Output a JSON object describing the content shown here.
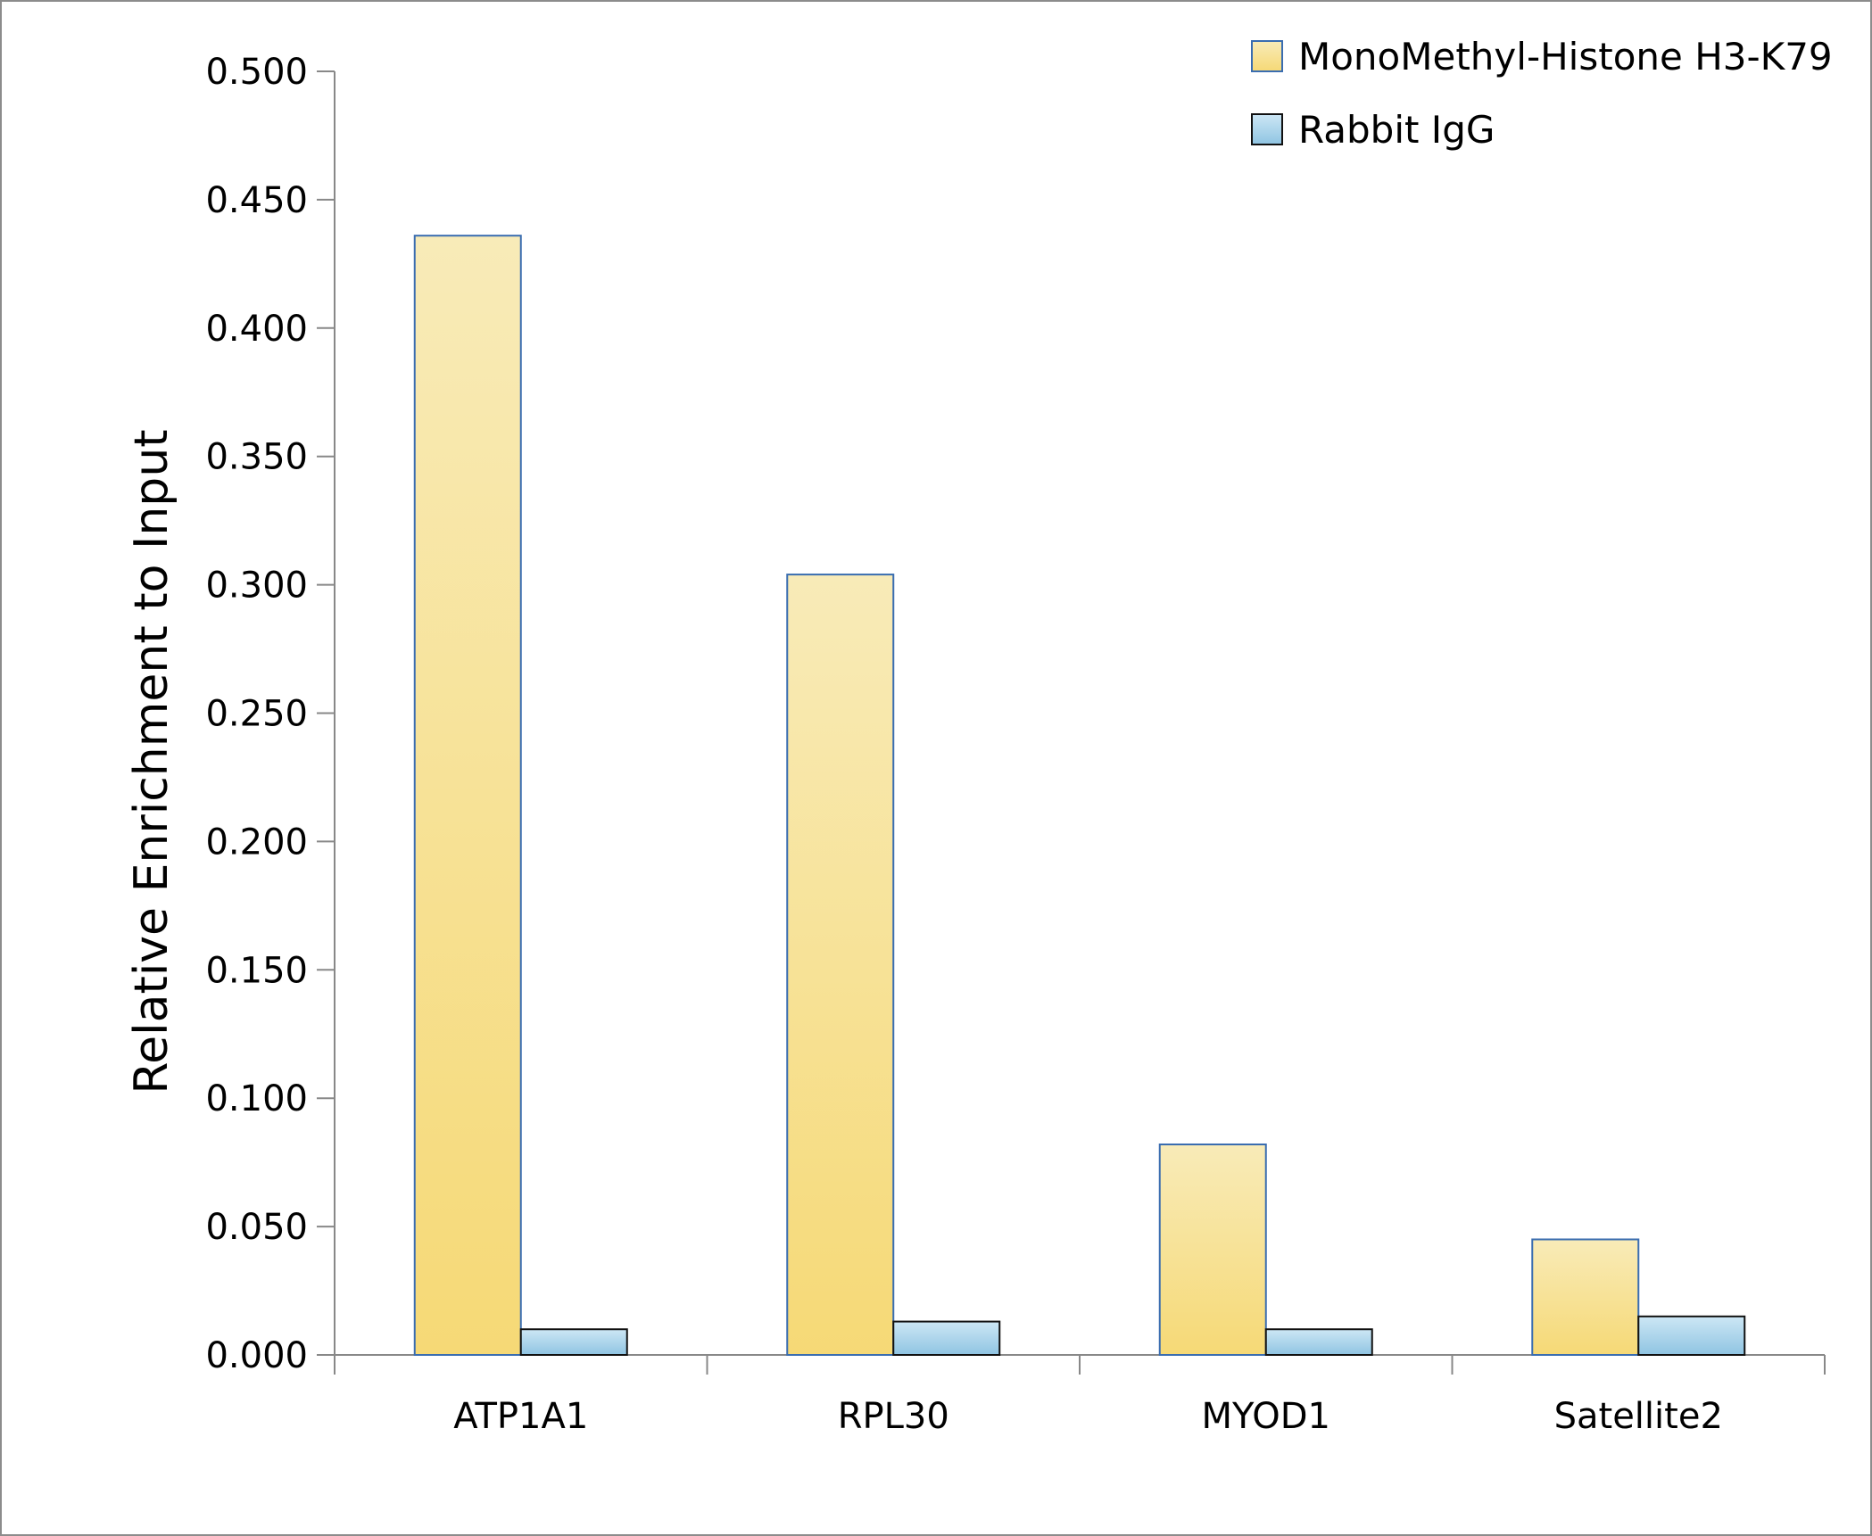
{
  "chart_data": {
    "type": "bar",
    "title": "",
    "xlabel": "",
    "ylabel": "Relative Enrichment to Input",
    "ylim": [
      0,
      0.5
    ],
    "yticks": [
      "0.000",
      "0.050",
      "0.100",
      "0.150",
      "0.200",
      "0.250",
      "0.300",
      "0.350",
      "0.400",
      "0.450",
      "0.500"
    ],
    "categories": [
      "ATP1A1",
      "RPL30",
      "MYOD1",
      "Satellite2"
    ],
    "series": [
      {
        "name": "MonoMethyl-Histone H3-K79",
        "values": [
          0.436,
          0.304,
          0.082,
          0.045
        ],
        "color_top": "#f8ebb8",
        "color_bottom": "#f6d976",
        "stroke": "#3a6db0"
      },
      {
        "name": "Rabbit IgG",
        "values": [
          0.01,
          0.013,
          0.01,
          0.015
        ],
        "color_top": "#cde7f5",
        "color_bottom": "#8fc4e2",
        "stroke": "#111111"
      }
    ],
    "grid": false,
    "legend": "top-right"
  }
}
